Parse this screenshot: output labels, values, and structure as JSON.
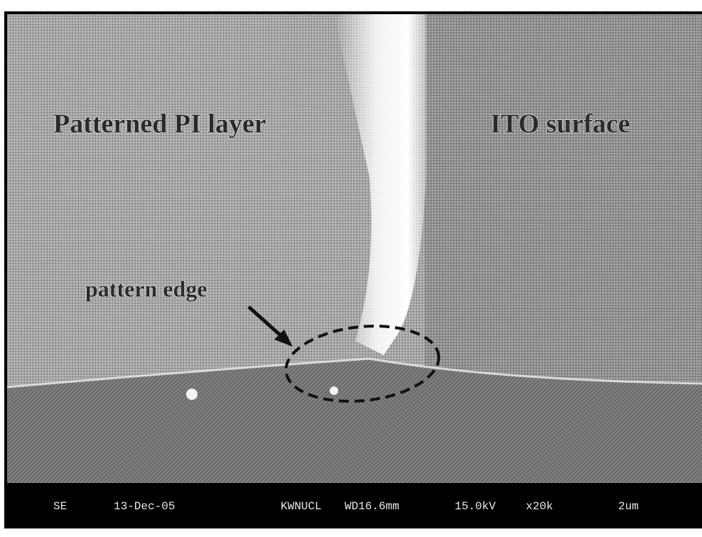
{
  "image": {
    "labels": {
      "left_region": "Patterned PI layer",
      "right_region": "ITO surface",
      "edge": "pattern edge"
    },
    "info_bar": {
      "detector": "SE",
      "date": "13-Dec-05",
      "operator": "KWNUCL",
      "working_distance": "WD16.6mm",
      "voltage": "15.0kV",
      "magnification": "x20k",
      "scale": "2um"
    }
  }
}
